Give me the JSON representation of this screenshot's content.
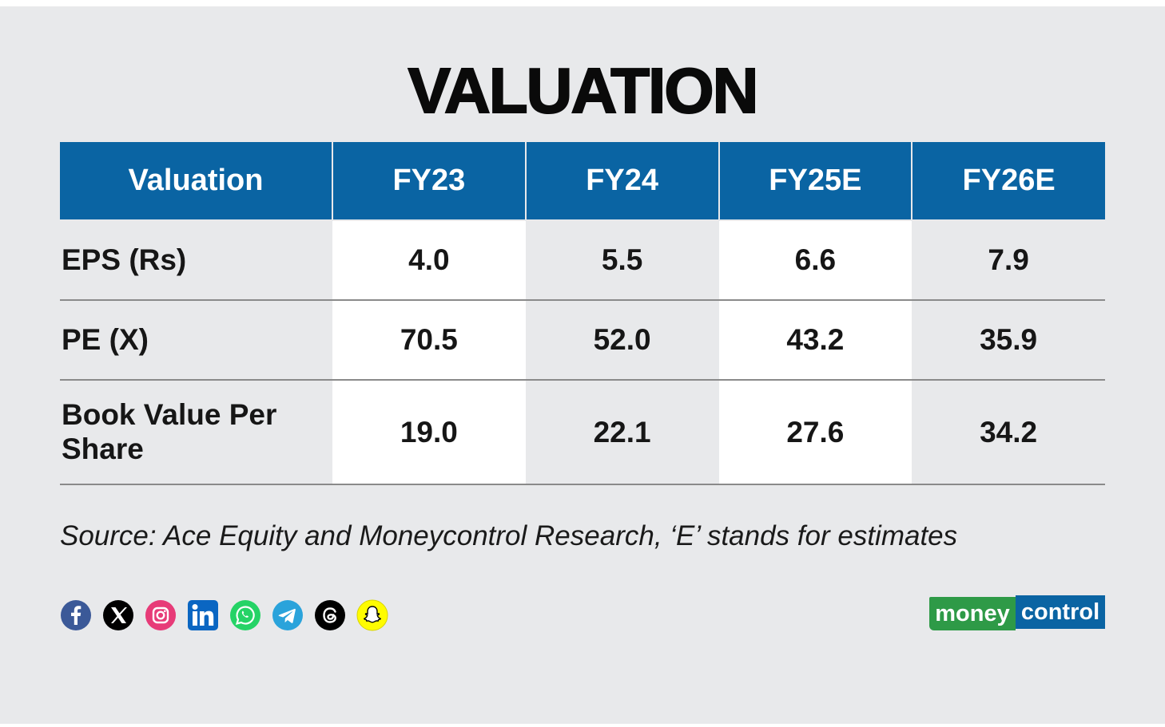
{
  "title": "VALUATION",
  "table": {
    "headers": [
      "Valuation",
      "FY23",
      "FY24",
      "FY25E",
      "FY26E"
    ],
    "rows": [
      {
        "label": "EPS (Rs)",
        "values": [
          "4.0",
          "5.5",
          "6.6",
          "7.9"
        ]
      },
      {
        "label": "PE (X)",
        "values": [
          "70.5",
          "52.0",
          "43.2",
          "35.9"
        ]
      },
      {
        "label": "Book Value Per Share",
        "values": [
          "19.0",
          "22.1",
          "27.6",
          "34.2"
        ]
      }
    ]
  },
  "source": "Source: Ace Equity and Moneycontrol Research, ‘E’ stands for estimates",
  "socials": [
    "facebook-icon",
    "x-icon",
    "instagram-icon",
    "linkedin-icon",
    "whatsapp-icon",
    "telegram-icon",
    "threads-icon",
    "snapchat-icon"
  ],
  "logo": {
    "part1": "money",
    "part2": "control"
  },
  "colors": {
    "header_bg": "#0a64a3",
    "background": "#e8e9eb",
    "logo_green": "#2e9a47",
    "logo_blue": "#0a64a3"
  }
}
